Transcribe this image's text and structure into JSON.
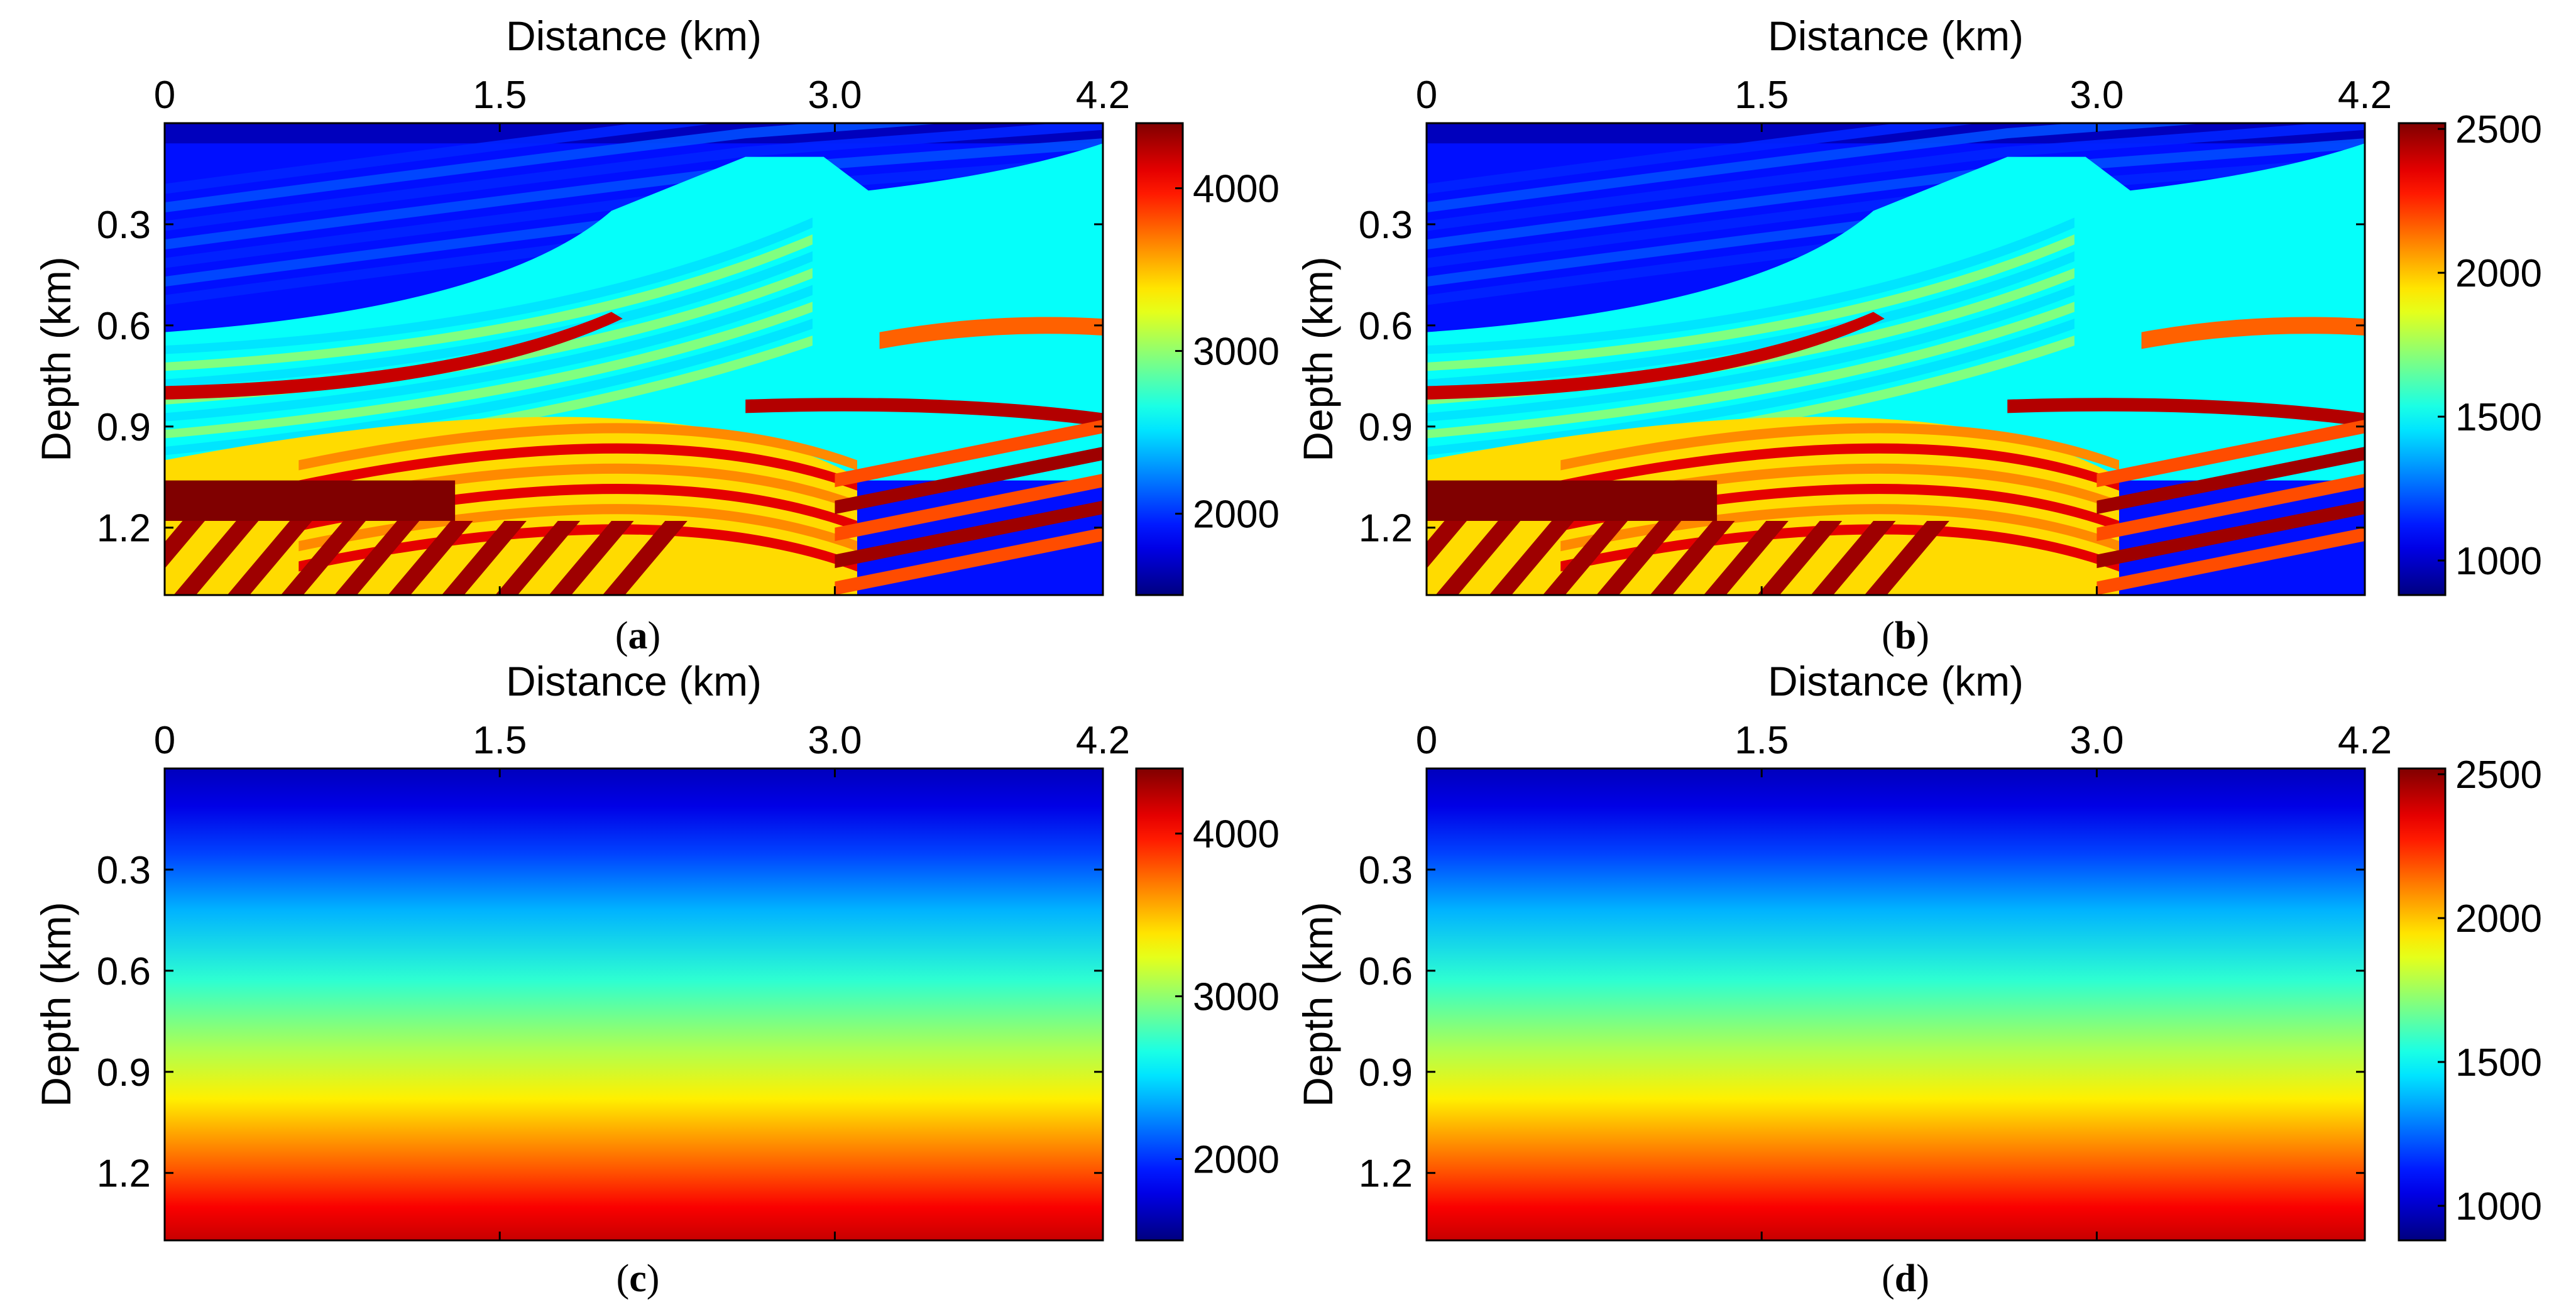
{
  "chart_data": [
    {
      "panel": "a",
      "type": "heatmap",
      "variant": "layered",
      "caption": "(a)",
      "caption_letter": "a",
      "xlabel": "Distance (km)",
      "ylabel": "Depth (km)",
      "xlim": [
        0,
        4.2
      ],
      "ylim": [
        0,
        1.4
      ],
      "x_ticks": [
        "0",
        "1.5",
        "3.0",
        "4.2"
      ],
      "x_tick_values": [
        0,
        1.5,
        3.0,
        4.2
      ],
      "y_ticks": [
        "0.3",
        "0.6",
        "0.9",
        "1.2"
      ],
      "y_tick_values": [
        0.3,
        0.6,
        0.9,
        1.2
      ],
      "colorbar": {
        "min": 1500,
        "max": 4400,
        "ticks": [
          "2000",
          "3000",
          "4000"
        ],
        "tick_values": [
          2000,
          3000,
          4000
        ],
        "colormap": "jet"
      }
    },
    {
      "panel": "b",
      "type": "heatmap",
      "variant": "layered",
      "caption": "(b)",
      "caption_letter": "b",
      "xlabel": "Distance (km)",
      "ylabel": "Depth (km)",
      "xlim": [
        0,
        4.2
      ],
      "ylim": [
        0,
        1.4
      ],
      "x_ticks": [
        "0",
        "1.5",
        "3.0",
        "4.2"
      ],
      "x_tick_values": [
        0,
        1.5,
        3.0,
        4.2
      ],
      "y_ticks": [
        "0.3",
        "0.6",
        "0.9",
        "1.2"
      ],
      "y_tick_values": [
        0.3,
        0.6,
        0.9,
        1.2
      ],
      "colorbar": {
        "min": 880,
        "max": 2520,
        "ticks": [
          "1000",
          "1500",
          "2000",
          "2500"
        ],
        "tick_values": [
          1000,
          1500,
          2000,
          2500
        ],
        "colormap": "jet"
      }
    },
    {
      "panel": "c",
      "type": "heatmap",
      "variant": "gradient",
      "caption": "(c)",
      "caption_letter": "c",
      "xlabel": "Distance (km)",
      "ylabel": "Depth (km)",
      "xlim": [
        0,
        4.2
      ],
      "ylim": [
        0,
        1.4
      ],
      "x_ticks": [
        "0",
        "1.5",
        "3.0",
        "4.2"
      ],
      "x_tick_values": [
        0,
        1.5,
        3.0,
        4.2
      ],
      "y_ticks": [
        "0.3",
        "0.6",
        "0.9",
        "1.2"
      ],
      "y_tick_values": [
        0.3,
        0.6,
        0.9,
        1.2
      ],
      "colorbar": {
        "min": 1500,
        "max": 4400,
        "ticks": [
          "2000",
          "3000",
          "4000"
        ],
        "tick_values": [
          2000,
          3000,
          4000
        ],
        "colormap": "jet"
      }
    },
    {
      "panel": "d",
      "type": "heatmap",
      "variant": "gradient",
      "caption": "(d)",
      "caption_letter": "d",
      "xlabel": "Distance (km)",
      "ylabel": "Depth (km)",
      "xlim": [
        0,
        4.2
      ],
      "ylim": [
        0,
        1.4
      ],
      "x_ticks": [
        "0",
        "1.5",
        "3.0",
        "4.2"
      ],
      "x_tick_values": [
        0,
        1.5,
        3.0,
        4.2
      ],
      "y_ticks": [
        "0.3",
        "0.6",
        "0.9",
        "1.2"
      ],
      "y_tick_values": [
        0.3,
        0.6,
        0.9,
        1.2
      ],
      "colorbar": {
        "min": 880,
        "max": 2520,
        "ticks": [
          "1000",
          "1500",
          "2000",
          "2500"
        ],
        "tick_values": [
          1000,
          1500,
          2000,
          2500
        ],
        "colormap": "jet"
      }
    }
  ]
}
